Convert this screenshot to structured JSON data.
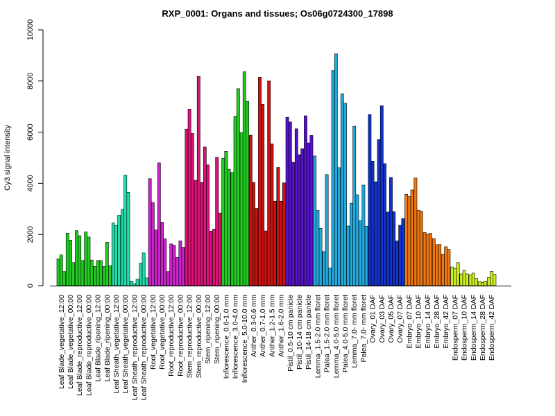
{
  "chart_data": {
    "type": "bar",
    "title": "RXP_0001: Organs and tissues; Os06g0724300_17898",
    "xlabel": "",
    "ylabel": "Cy3 signal intensity",
    "ylim": [
      0,
      10000
    ],
    "yticks": [
      0,
      2000,
      4000,
      6000,
      8000,
      10000
    ],
    "grid": false,
    "legend": "none",
    "groups": [
      {
        "label": "Leaf Blade_vegetative_12:00",
        "color": "#22cc22",
        "values": [
          1050,
          1200,
          550
        ]
      },
      {
        "label": "Leaf Blade_vegetative_00:00",
        "color": "#22cc22",
        "values": [
          2050,
          1780,
          900
        ]
      },
      {
        "label": "Leaf Blade_reproductive_12:00",
        "color": "#22cc22",
        "values": [
          2150,
          1950,
          980
        ]
      },
      {
        "label": "Leaf Blade_reproductive_00:00",
        "color": "#22cc22",
        "values": [
          2100,
          1900,
          1000
        ]
      },
      {
        "label": "Leaf Blade_ripening_12:00",
        "color": "#22cc22",
        "values": [
          750,
          980,
          980
        ]
      },
      {
        "label": "Leaf Blade_ripening_00:00",
        "color": "#22cc22",
        "values": [
          750,
          1700,
          780
        ]
      },
      {
        "label": "Leaf Sheath_vegetative_12:00",
        "color": "#22ddaa",
        "values": [
          2450,
          2350,
          2750
        ]
      },
      {
        "label": "Leaf Sheath_vegetative_00:00",
        "color": "#22ddaa",
        "values": [
          2980,
          4320,
          3650
        ]
      },
      {
        "label": "Leaf Sheath_reproductive_12:00",
        "color": "#22ddaa",
        "values": [
          180,
          80,
          250
        ]
      },
      {
        "label": "Leaf Sheath_reproductive_00:00",
        "color": "#22ddaa",
        "values": [
          880,
          1280,
          300
        ]
      },
      {
        "label": "Root_vegetative_12:00",
        "color": "#cc22cc",
        "values": [
          4180,
          3250,
          2180
        ]
      },
      {
        "label": "Root_vegetative_00:00",
        "color": "#cc22cc",
        "values": [
          4800,
          2480,
          1830
        ]
      },
      {
        "label": "Root_reproductive_12:00",
        "color": "#cc22cc",
        "values": [
          550,
          1630,
          1580
        ]
      },
      {
        "label": "Root_reproductive_00:00",
        "color": "#cc22cc",
        "values": [
          1100,
          1750,
          1500
        ]
      },
      {
        "label": "Stem_reproductive_12:00",
        "color": "#dd1177",
        "values": [
          6120,
          6900,
          5950
        ]
      },
      {
        "label": "Stem_reproductive_00:00",
        "color": "#dd1177",
        "values": [
          4120,
          8180,
          4030
        ]
      },
      {
        "label": "Stem_ripening_12:00",
        "color": "#dd1177",
        "values": [
          5420,
          4720,
          2130
        ]
      },
      {
        "label": "Stem_ripening_00:00",
        "color": "#dd1177",
        "values": [
          2210,
          5020,
          2840
        ]
      },
      {
        "label": "Inflorescence_0.6-1.0 mm",
        "color": "#22cc22",
        "values": [
          4980,
          5250,
          4550
        ]
      },
      {
        "label": "Inflorescence_3.0-4.0 mm",
        "color": "#22cc22",
        "values": [
          4420,
          6620,
          7700
        ]
      },
      {
        "label": "Inflorescence_5.0-10.0 mm",
        "color": "#22cc22",
        "values": [
          5980,
          8360,
          7200
        ]
      },
      {
        "label": "Anther_0.3-0.6 mm",
        "color": "#cc1111",
        "values": [
          5880,
          4030,
          3020
        ]
      },
      {
        "label": "Anther_0.7-1.0 mm",
        "color": "#cc1111",
        "values": [
          8150,
          7090,
          2140
        ]
      },
      {
        "label": "Anther_1.2-1.5 mm",
        "color": "#cc1111",
        "values": [
          8000,
          5540,
          3300
        ]
      },
      {
        "label": "Anther_1.6-2.0 mm",
        "color": "#cc1111",
        "values": [
          4620,
          3300,
          4020
        ]
      },
      {
        "label": "Pistil_0.5-10 cm panicle",
        "color": "#5511cc",
        "values": [
          6580,
          6400,
          4820
        ]
      },
      {
        "label": "Pistil_10-14 cm panicle",
        "color": "#5511cc",
        "values": [
          6130,
          5120,
          5350
        ]
      },
      {
        "label": "Pistil_14-18 cm panicle",
        "color": "#5511cc",
        "values": [
          6640,
          5580,
          5870
        ]
      },
      {
        "label": "Lemma_1.5-2.0 mm floret",
        "color": "#22aadd",
        "values": [
          5070,
          2940,
          2240
        ]
      },
      {
        "label": "Palea_1.5-2.0 mm floret",
        "color": "#22aadd",
        "values": [
          1330,
          4340,
          690
        ]
      },
      {
        "label": "Lemma_4.0-5.0 mm floret",
        "color": "#22aadd",
        "values": [
          8410,
          9060,
          4610
        ]
      },
      {
        "label": "Palea_4.0-5.0 mm floret",
        "color": "#22aadd",
        "values": [
          7500,
          7130,
          2330
        ]
      },
      {
        "label": "Lemma_7.0- mm floret",
        "color": "#22aadd",
        "values": [
          3220,
          6230,
          3550
        ]
      },
      {
        "label": "Palea_7.0- mm floret",
        "color": "#22aadd",
        "values": [
          2540,
          3930,
          2320
        ]
      },
      {
        "label": "Ovary_01 DAF",
        "color": "#1133cc",
        "values": [
          6690,
          4870,
          4060
        ]
      },
      {
        "label": "Ovary_03 DAF",
        "color": "#1133cc",
        "values": [
          5710,
          7030,
          4770
        ]
      },
      {
        "label": "Ovary_05 DAF",
        "color": "#1133cc",
        "values": [
          2880,
          4230,
          2890
        ]
      },
      {
        "label": "Ovary_07 DAF",
        "color": "#1133cc",
        "values": [
          1750,
          2360,
          2620
        ]
      },
      {
        "label": "Embryo_07 DAF",
        "color": "#ee7711",
        "values": [
          3570,
          3480,
          3740
        ]
      },
      {
        "label": "Embryo_10 DAF",
        "color": "#ee7711",
        "values": [
          4210,
          2950,
          2910
        ]
      },
      {
        "label": "Embryo_14 DAF",
        "color": "#ee7711",
        "values": [
          2080,
          2020,
          2040
        ]
      },
      {
        "label": "Embryo_28 DAF",
        "color": "#ee7711",
        "values": [
          1840,
          1600,
          1610
        ]
      },
      {
        "label": "Embryo_42 DAF",
        "color": "#ee7711",
        "values": [
          1230,
          1520,
          1420
        ]
      },
      {
        "label": "Endosperm_07 DAF",
        "color": "#ccee22",
        "values": [
          730,
          670,
          900
        ]
      },
      {
        "label": "Endosperm_10 DAF",
        "color": "#ccee22",
        "values": [
          460,
          600,
          460
        ]
      },
      {
        "label": "Endosperm_14 DAF",
        "color": "#ccee22",
        "values": [
          420,
          490,
          280
        ]
      },
      {
        "label": "Endosperm_28 DAF",
        "color": "#ccee22",
        "values": [
          170,
          130,
          180
        ]
      },
      {
        "label": "Endosperm_42 DAF",
        "color": "#ccee22",
        "values": [
          320,
          560,
          450
        ]
      }
    ]
  }
}
